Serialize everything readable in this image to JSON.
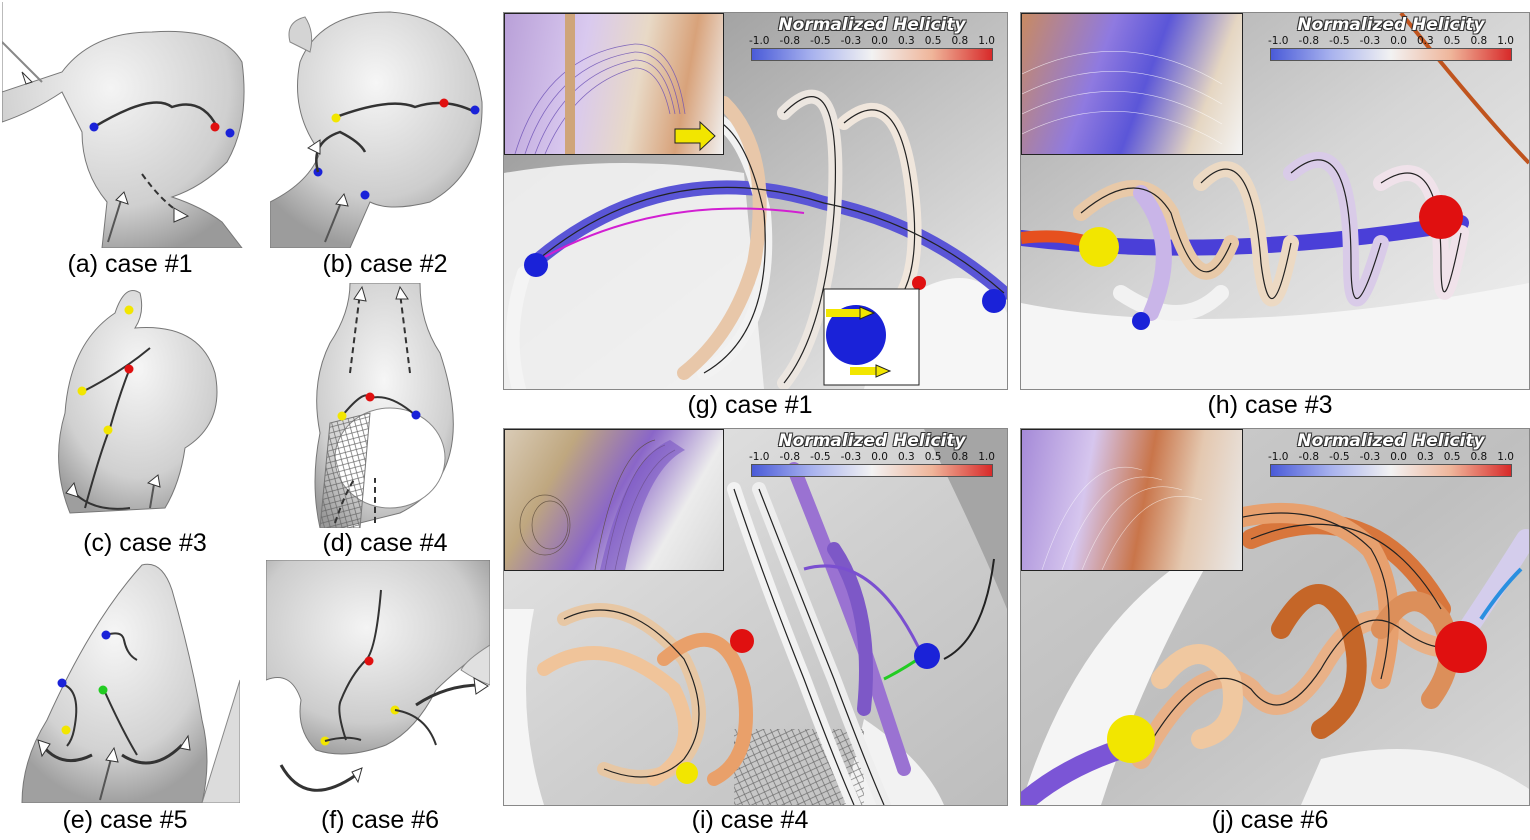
{
  "panels": {
    "a": {
      "label": "(a) case #1"
    },
    "b": {
      "label": "(b) case #2"
    },
    "c": {
      "label": "(c) case #3"
    },
    "d": {
      "label": "(d) case #4"
    },
    "e": {
      "label": "(e) case #5"
    },
    "f": {
      "label": "(f) case #6"
    },
    "g": {
      "label": "(g) case #1"
    },
    "h": {
      "label": "(h) case #3"
    },
    "i": {
      "label": "(i) case #4"
    },
    "j": {
      "label": "(j) case #6"
    }
  },
  "legend": {
    "title": "Normalized Helicity",
    "ticks": [
      "-1.0",
      "-0.8",
      "-0.5",
      "-0.3",
      "0.0",
      "0.3",
      "0.5",
      "0.8",
      "1.0"
    ],
    "colors": {
      "negative": "#4a5bd8",
      "neutral": "#f2f2f2",
      "positive": "#d82a2a"
    }
  },
  "marker_colors": {
    "red": "#e01010",
    "blue": "#1a22d8",
    "yellow": "#f2e600",
    "green": "#22cc22"
  }
}
